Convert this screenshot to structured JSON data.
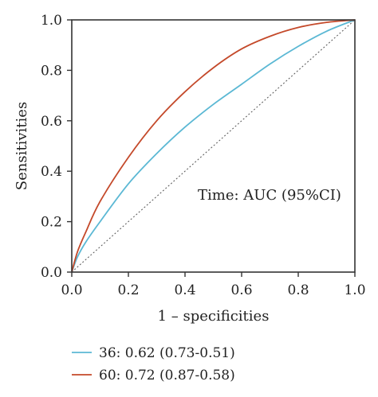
{
  "chart_data": {
    "type": "line",
    "xlabel": "1 – specificities",
    "ylabel": "Sensitivities",
    "xlim": [
      0.0,
      1.0
    ],
    "ylim": [
      0.0,
      1.0
    ],
    "x_ticks": [
      "0.0",
      "0.2",
      "0.4",
      "0.6",
      "0.8",
      "1.0"
    ],
    "y_ticks": [
      "0.0",
      "0.2",
      "0.4",
      "0.6",
      "0.8",
      "1.0"
    ],
    "annotation": "Time: AUC (95%CI)",
    "grid": false,
    "legend_position": "bottom",
    "reference_line": {
      "x": [
        0,
        1
      ],
      "y": [
        0,
        1
      ],
      "style": "dotted",
      "color": "#555555"
    },
    "series": [
      {
        "name": "36: 0.62 (0.73-0.51)",
        "color": "#5bb8d4",
        "x": [
          0.0,
          0.02,
          0.05,
          0.1,
          0.2,
          0.3,
          0.4,
          0.5,
          0.6,
          0.7,
          0.8,
          0.9,
          1.0
        ],
        "y": [
          0.0,
          0.06,
          0.12,
          0.2,
          0.35,
          0.47,
          0.575,
          0.665,
          0.745,
          0.825,
          0.895,
          0.955,
          1.0
        ]
      },
      {
        "name": "60: 0.72 (0.87-0.58)",
        "color": "#c4492a",
        "x": [
          0.0,
          0.02,
          0.05,
          0.1,
          0.2,
          0.3,
          0.4,
          0.5,
          0.6,
          0.7,
          0.8,
          0.9,
          1.0
        ],
        "y": [
          0.0,
          0.08,
          0.16,
          0.28,
          0.455,
          0.6,
          0.715,
          0.81,
          0.885,
          0.935,
          0.97,
          0.99,
          1.0
        ]
      }
    ]
  }
}
